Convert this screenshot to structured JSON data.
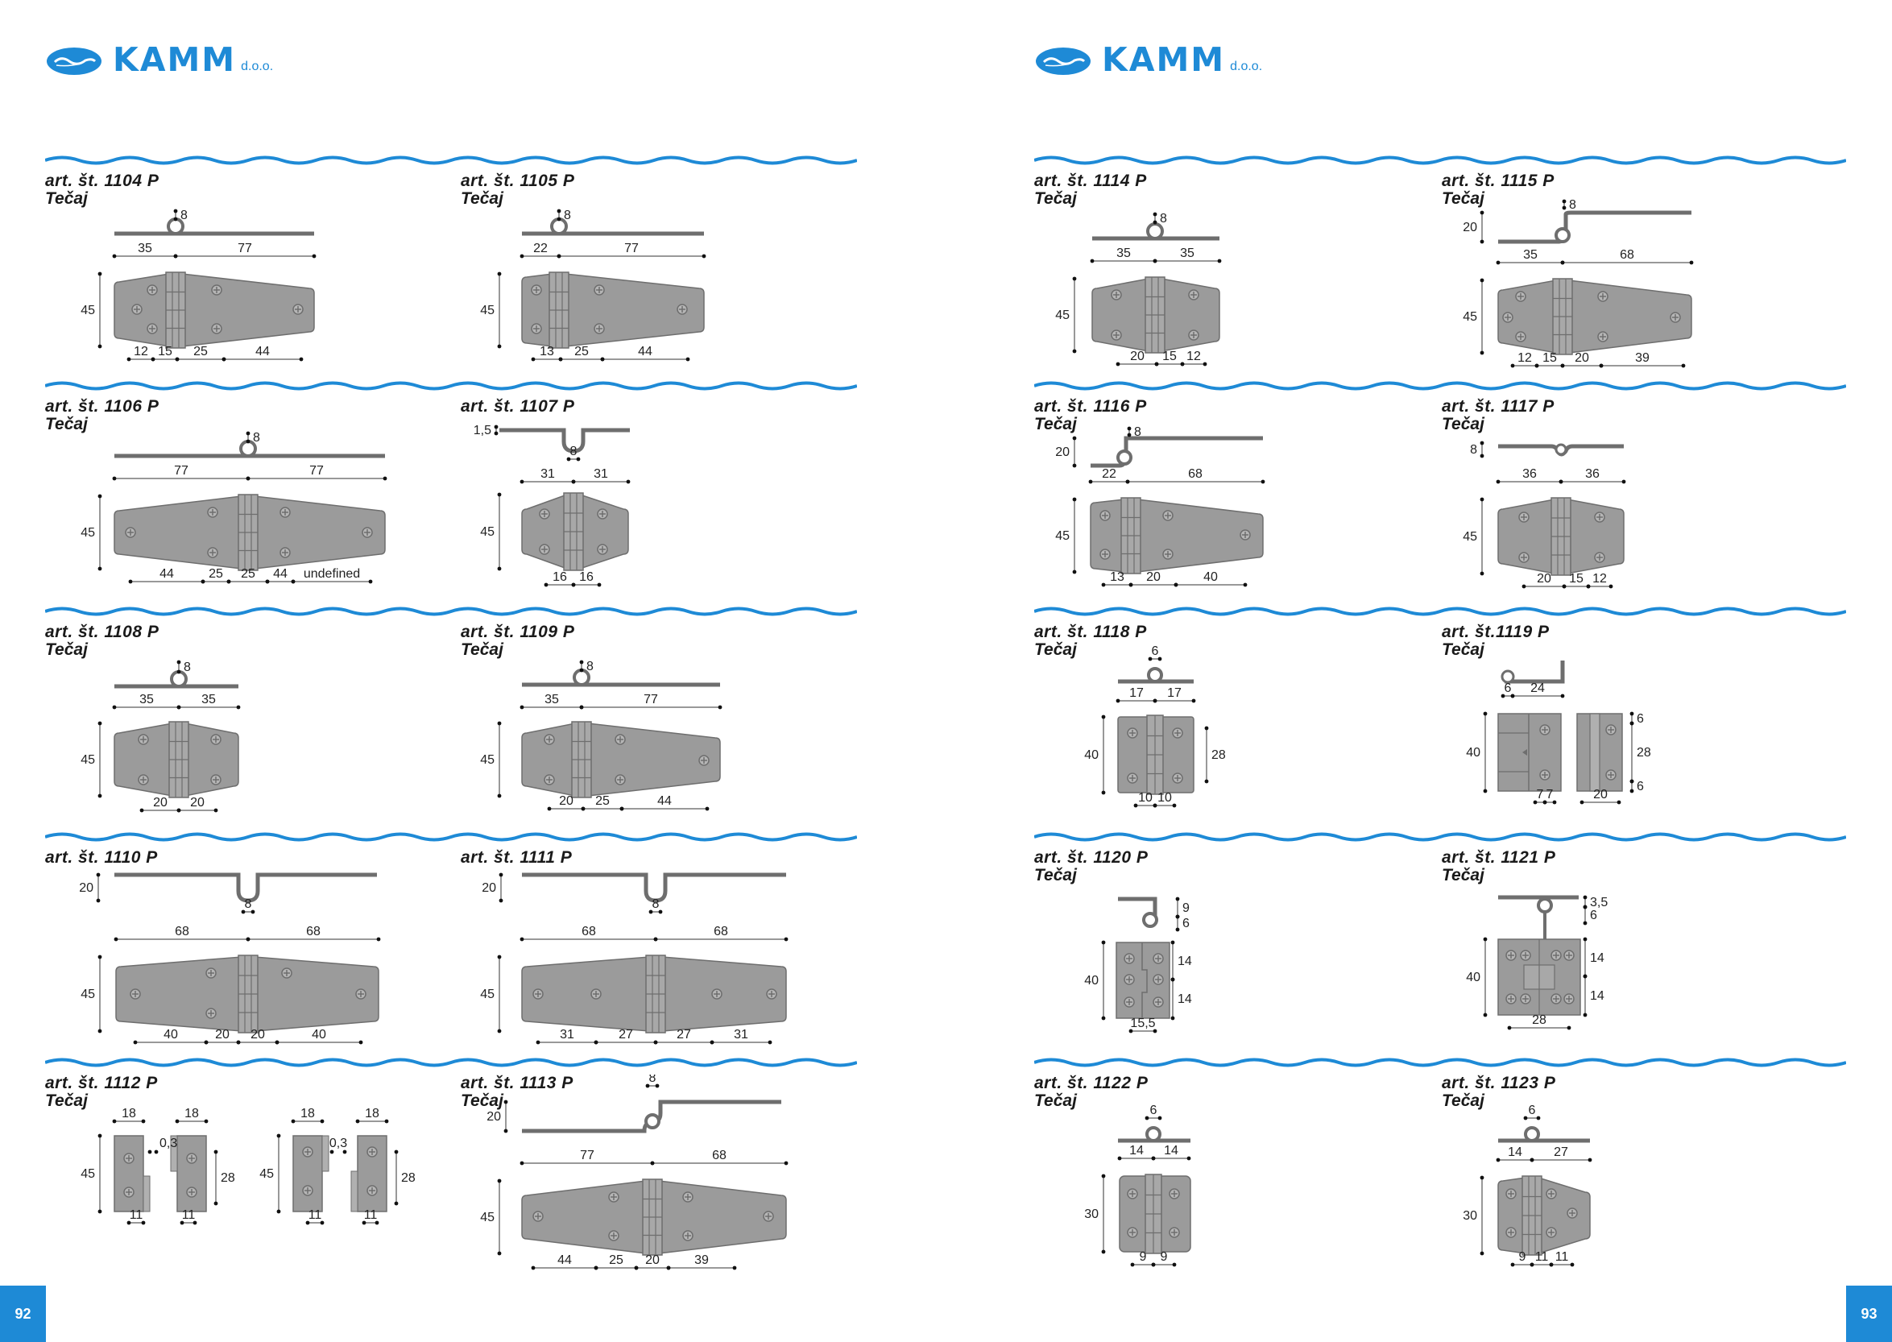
{
  "brand": {
    "name": "KAMM",
    "suffix": "d.o.o."
  },
  "pages": {
    "left": "92",
    "right": "93"
  },
  "items": [
    {
      "code": "art. št. 1104 P",
      "sub": "Tečaj",
      "dims": [
        "8",
        "35",
        "77",
        "45",
        "12",
        "15",
        "25",
        "44"
      ]
    },
    {
      "code": "art. št. 1105 P",
      "sub": "Tečaj",
      "dims": [
        "8",
        "22",
        "77",
        "45",
        "13",
        "25",
        "44"
      ]
    },
    {
      "code": "art. št. 1106 P",
      "sub": "Tečaj",
      "dims": [
        "8",
        "77",
        "77",
        "45",
        "44",
        "25",
        "25",
        "44"
      ]
    },
    {
      "code": "art. št. 1107 P",
      "sub": "",
      "dims": [
        "1,5",
        "8",
        "31",
        "31",
        "45",
        "16",
        "16"
      ]
    },
    {
      "code": "art. št. 1108 P",
      "sub": "Tečaj",
      "dims": [
        "8",
        "35",
        "35",
        "45",
        "20",
        "20"
      ]
    },
    {
      "code": "art. št. 1109 P",
      "sub": "Tečaj",
      "dims": [
        "8",
        "35",
        "77",
        "45",
        "20",
        "25",
        "44"
      ]
    },
    {
      "code": "art. št. 1110 P",
      "sub": "",
      "dims": [
        "20",
        "8",
        "68",
        "68",
        "45",
        "40",
        "20",
        "20",
        "40"
      ]
    },
    {
      "code": "art. št. 1111 P",
      "sub": "",
      "dims": [
        "20",
        "8",
        "68",
        "68",
        "45",
        "31",
        "27",
        "27",
        "31"
      ]
    },
    {
      "code": "art. št. 1112 P",
      "sub": "Tečaj",
      "dims": [
        "18",
        "18",
        "0,3",
        "45",
        "28",
        "11",
        "11",
        "18",
        "18",
        "0,3",
        "45",
        "28",
        "11",
        "11"
      ]
    },
    {
      "code": "art. št. 1113 P",
      "sub": "Tečaj",
      "dims": [
        "8",
        "20",
        "77",
        "68",
        "45",
        "44",
        "25",
        "20",
        "39"
      ]
    },
    {
      "code": "art. št. 1114 P",
      "sub": "Tečaj",
      "dims": [
        "8",
        "35",
        "35",
        "45",
        "20",
        "15",
        "12"
      ]
    },
    {
      "code": "art. št. 1115 P",
      "sub": "Tečaj",
      "dims": [
        "8",
        "20",
        "35",
        "68",
        "45",
        "12",
        "15",
        "20",
        "39"
      ]
    },
    {
      "code": "art. št. 1116 P",
      "sub": "Tečaj",
      "dims": [
        "8",
        "20",
        "22",
        "68",
        "45",
        "13",
        "20",
        "40"
      ]
    },
    {
      "code": "art. št. 1117 P",
      "sub": "Tečaj",
      "dims": [
        "8",
        "36",
        "36",
        "45",
        "20",
        "15",
        "12"
      ]
    },
    {
      "code": "art. št. 1118 P",
      "sub": "Tečaj",
      "dims": [
        "6",
        "17",
        "17",
        "40",
        "28",
        "10",
        "10"
      ]
    },
    {
      "code": "art. št.1119 P",
      "sub": "Tečaj",
      "dims": [
        "6",
        "24",
        "40",
        "6",
        "28",
        "6",
        "7",
        "7",
        "20"
      ]
    },
    {
      "code": "art. št. 1120 P",
      "sub": "Tečaj",
      "dims": [
        "9",
        "6",
        "40",
        "14",
        "14",
        "15,5"
      ]
    },
    {
      "code": "art. št. 1121 P",
      "sub": "Tečaj",
      "dims": [
        "3,5",
        "6",
        "40",
        "14",
        "14",
        "28"
      ]
    },
    {
      "code": "art. št. 1122 P",
      "sub": "Tečaj",
      "dims": [
        "6",
        "14",
        "14",
        "30",
        "9",
        "9"
      ]
    },
    {
      "code": "art. št. 1123 P",
      "sub": "Tečaj",
      "dims": [
        "6",
        "14",
        "27",
        "30",
        "9",
        "11",
        "11"
      ]
    }
  ]
}
